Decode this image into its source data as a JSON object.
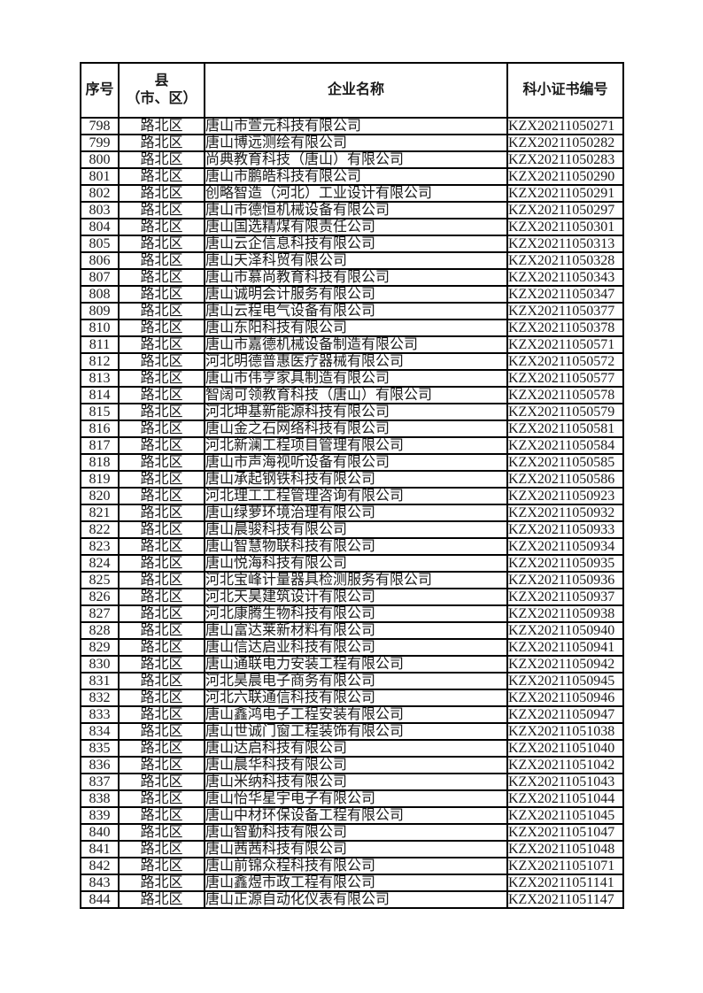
{
  "table": {
    "header": {
      "col_no": "序号",
      "col_district_line1": "县",
      "col_district_line2": "（市、区）",
      "col_company": "企业名称",
      "col_cert": "科小证书编号"
    },
    "rows": [
      {
        "no": "798",
        "district": "路北区",
        "company": "唐山市萱元科技有限公司",
        "cert": "KZX20211050271"
      },
      {
        "no": "799",
        "district": "路北区",
        "company": "唐山博远测绘有限公司",
        "cert": "KZX20211050282"
      },
      {
        "no": "800",
        "district": "路北区",
        "company": "尚典教育科技（唐山）有限公司",
        "cert": "KZX20211050283"
      },
      {
        "no": "801",
        "district": "路北区",
        "company": "唐山市鹏皓科技有限公司",
        "cert": "KZX20211050290"
      },
      {
        "no": "802",
        "district": "路北区",
        "company": "创略智造（河北）工业设计有限公司",
        "cert": "KZX20211050291"
      },
      {
        "no": "803",
        "district": "路北区",
        "company": "唐山市德恒机械设备有限公司",
        "cert": "KZX20211050297"
      },
      {
        "no": "804",
        "district": "路北区",
        "company": "唐山国选精煤有限责任公司",
        "cert": "KZX20211050301"
      },
      {
        "no": "805",
        "district": "路北区",
        "company": "唐山云企信息科技有限公司",
        "cert": "KZX20211050313"
      },
      {
        "no": "806",
        "district": "路北区",
        "company": "唐山天泽科贸有限公司",
        "cert": "KZX20211050328"
      },
      {
        "no": "807",
        "district": "路北区",
        "company": "唐山市慕尚教育科技有限公司",
        "cert": "KZX20211050343"
      },
      {
        "no": "808",
        "district": "路北区",
        "company": "唐山诚明会计服务有限公司",
        "cert": "KZX20211050347"
      },
      {
        "no": "809",
        "district": "路北区",
        "company": "唐山云程电气设备有限公司",
        "cert": "KZX20211050377"
      },
      {
        "no": "810",
        "district": "路北区",
        "company": "唐山东阳科技有限公司",
        "cert": "KZX20211050378"
      },
      {
        "no": "811",
        "district": "路北区",
        "company": "唐山市嘉德机械设备制造有限公司",
        "cert": "KZX20211050571"
      },
      {
        "no": "812",
        "district": "路北区",
        "company": "河北明德普惠医疗器械有限公司",
        "cert": "KZX20211050572"
      },
      {
        "no": "813",
        "district": "路北区",
        "company": "唐山市伟亨家具制造有限公司",
        "cert": "KZX20211050577"
      },
      {
        "no": "814",
        "district": "路北区",
        "company": "智阔可领教育科技（唐山）有限公司",
        "cert": "KZX20211050578"
      },
      {
        "no": "815",
        "district": "路北区",
        "company": "河北坤基新能源科技有限公司",
        "cert": "KZX20211050579"
      },
      {
        "no": "816",
        "district": "路北区",
        "company": "唐山金之石网络科技有限公司",
        "cert": "KZX20211050581"
      },
      {
        "no": "817",
        "district": "路北区",
        "company": "河北新澜工程项目管理有限公司",
        "cert": "KZX20211050584"
      },
      {
        "no": "818",
        "district": "路北区",
        "company": "唐山市声海视听设备有限公司",
        "cert": "KZX20211050585"
      },
      {
        "no": "819",
        "district": "路北区",
        "company": "唐山承起钢铁科技有限公司",
        "cert": "KZX20211050586"
      },
      {
        "no": "820",
        "district": "路北区",
        "company": "河北理工工程管理咨询有限公司",
        "cert": "KZX20211050923"
      },
      {
        "no": "821",
        "district": "路北区",
        "company": "唐山绿萝环境治理有限公司",
        "cert": "KZX20211050932"
      },
      {
        "no": "822",
        "district": "路北区",
        "company": "唐山晨骏科技有限公司",
        "cert": "KZX20211050933"
      },
      {
        "no": "823",
        "district": "路北区",
        "company": "唐山智慧物联科技有限公司",
        "cert": "KZX20211050934"
      },
      {
        "no": "824",
        "district": "路北区",
        "company": "唐山悦海科技有限公司",
        "cert": "KZX20211050935"
      },
      {
        "no": "825",
        "district": "路北区",
        "company": "河北宝峰计量器具检测服务有限公司",
        "cert": "KZX20211050936"
      },
      {
        "no": "826",
        "district": "路北区",
        "company": "河北天昊建筑设计有限公司",
        "cert": "KZX20211050937"
      },
      {
        "no": "827",
        "district": "路北区",
        "company": "河北康腾生物科技有限公司",
        "cert": "KZX20211050938"
      },
      {
        "no": "828",
        "district": "路北区",
        "company": "唐山富达莱新材料有限公司",
        "cert": "KZX20211050940"
      },
      {
        "no": "829",
        "district": "路北区",
        "company": "唐山信达启业科技有限公司",
        "cert": "KZX20211050941"
      },
      {
        "no": "830",
        "district": "路北区",
        "company": "唐山通联电力安装工程有限公司",
        "cert": "KZX20211050942"
      },
      {
        "no": "831",
        "district": "路北区",
        "company": "河北昊晨电子商务有限公司",
        "cert": "KZX20211050945"
      },
      {
        "no": "832",
        "district": "路北区",
        "company": "河北六联通信科技有限公司",
        "cert": "KZX20211050946"
      },
      {
        "no": "833",
        "district": "路北区",
        "company": "唐山鑫鸿电子工程安装有限公司",
        "cert": "KZX20211050947"
      },
      {
        "no": "834",
        "district": "路北区",
        "company": "唐山世诚门窗工程装饰有限公司",
        "cert": "KZX20211051038"
      },
      {
        "no": "835",
        "district": "路北区",
        "company": "唐山达启科技有限公司",
        "cert": "KZX20211051040"
      },
      {
        "no": "836",
        "district": "路北区",
        "company": "唐山晨华科技有限公司",
        "cert": "KZX20211051042"
      },
      {
        "no": "837",
        "district": "路北区",
        "company": "唐山米纳科技有限公司",
        "cert": "KZX20211051043"
      },
      {
        "no": "838",
        "district": "路北区",
        "company": "唐山怡华星宇电子有限公司",
        "cert": "KZX20211051044"
      },
      {
        "no": "839",
        "district": "路北区",
        "company": "唐山中材环保设备工程有限公司",
        "cert": "KZX20211051045"
      },
      {
        "no": "840",
        "district": "路北区",
        "company": "唐山智勤科技有限公司",
        "cert": "KZX20211051047"
      },
      {
        "no": "841",
        "district": "路北区",
        "company": "唐山茜茜科技有限公司",
        "cert": "KZX20211051048"
      },
      {
        "no": "842",
        "district": "路北区",
        "company": "唐山前锦众程科技有限公司",
        "cert": "KZX20211051071"
      },
      {
        "no": "843",
        "district": "路北区",
        "company": "唐山鑫煜市政工程有限公司",
        "cert": "KZX20211051141"
      },
      {
        "no": "844",
        "district": "路北区",
        "company": "唐山正源自动化仪表有限公司",
        "cert": "KZX20211051147"
      }
    ]
  }
}
